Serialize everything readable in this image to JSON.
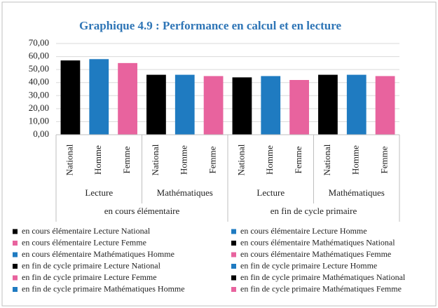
{
  "chart_data": {
    "type": "bar",
    "title": "Graphique 4.9 : Performance en calcul et en lecture",
    "categories": [
      "National",
      "Homme",
      "Femme",
      "National",
      "Homme",
      "Femme",
      "National",
      "Homme",
      "Femme",
      "National",
      "Homme",
      "Femme"
    ],
    "subgroups": [
      "Lecture",
      "Mathématiques",
      "Lecture",
      "Mathématiques"
    ],
    "groups": [
      "en cours élémentaire",
      "en fin de cycle primaire"
    ],
    "values": [
      57,
      58,
      55,
      46,
      46,
      45,
      44,
      45,
      42,
      46,
      46,
      45
    ],
    "colors": [
      "#000000",
      "#1f7bc1",
      "#e8639e",
      "#000000",
      "#1f7bc1",
      "#e8639e",
      "#000000",
      "#1f7bc1",
      "#e8639e",
      "#000000",
      "#1f7bc1",
      "#e8639e"
    ],
    "legend": [
      {
        "label": "en cours élémentaire Lecture National",
        "color": "#000000"
      },
      {
        "label": "en cours élémentaire Lecture Homme",
        "color": "#1f7bc1"
      },
      {
        "label": "en cours élémentaire Lecture Femme",
        "color": "#e8639e"
      },
      {
        "label": "en cours élémentaire Mathématiques National",
        "color": "#000000"
      },
      {
        "label": "en cours élémentaire Mathématiques Homme",
        "color": "#1f7bc1"
      },
      {
        "label": "en cours élémentaire Mathématiques Femme",
        "color": "#e8639e"
      },
      {
        "label": "en fin de cycle primaire Lecture National",
        "color": "#000000"
      },
      {
        "label": "en fin de cycle primaire Lecture Homme",
        "color": "#1f7bc1"
      },
      {
        "label": "en fin de cycle primaire Lecture Femme",
        "color": "#e8639e"
      },
      {
        "label": "en fin de cycle primaire Mathématiques National",
        "color": "#000000"
      },
      {
        "label": "en fin de cycle primaire Mathématiques Homme",
        "color": "#1f7bc1"
      },
      {
        "label": "en fin de cycle primaire Mathématiques Femme",
        "color": "#e8639e"
      }
    ],
    "ylim": [
      0,
      70
    ],
    "yticks": [
      {
        "value": 0,
        "label": "0,00"
      },
      {
        "value": 10,
        "label": "10,00"
      },
      {
        "value": 20,
        "label": "20,00"
      },
      {
        "value": 30,
        "label": "30,00"
      },
      {
        "value": 40,
        "label": "40,00"
      },
      {
        "value": 50,
        "label": "50,00"
      },
      {
        "value": 60,
        "label": "60,00"
      },
      {
        "value": 70,
        "label": "70,00"
      }
    ],
    "grid": true
  }
}
